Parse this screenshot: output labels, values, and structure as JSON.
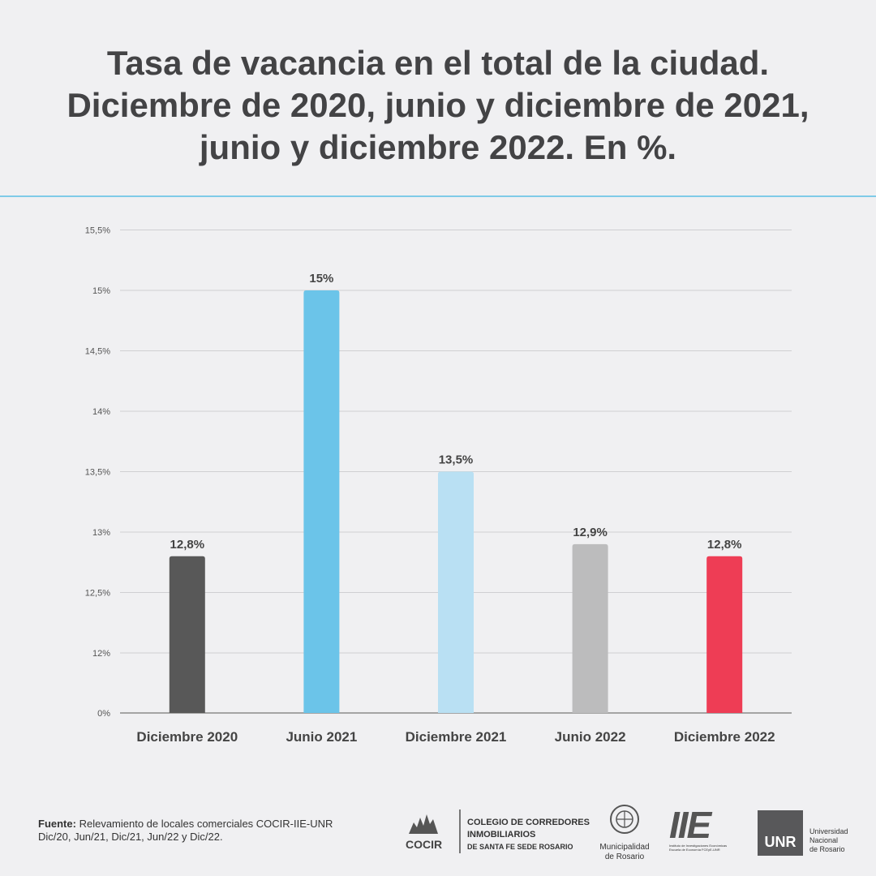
{
  "chart_data": {
    "type": "bar",
    "title": "Tasa de vacancia en el total de la ciudad. Diciembre de 2020, junio y diciembre de 2021, junio y diciembre 2022. En %.",
    "title_lines": [
      "Tasa de vacancia en el total de la ciudad.",
      "Diciembre de 2020, junio y diciembre de 2021,",
      "junio y diciembre 2022. En %."
    ],
    "categories": [
      "Diciembre 2020",
      "Junio 2021",
      "Diciembre 2021",
      "Junio 2022",
      "Diciembre 2022"
    ],
    "values": [
      12.8,
      15,
      13.5,
      12.9,
      12.8
    ],
    "value_labels": [
      "12,8%",
      "15%",
      "13,5%",
      "12,9%",
      "12,8%"
    ],
    "bar_colors": [
      "#585858",
      "#6bc4e9",
      "#b9e0f3",
      "#bcbcbd",
      "#ee3d55"
    ],
    "yticks": [
      0,
      12,
      12.5,
      13,
      13.5,
      14,
      14.5,
      15,
      15.5
    ],
    "ytick_labels": [
      "0%",
      "12%",
      "12,5%",
      "13%",
      "13,5%",
      "14%",
      "14,5%",
      "15%",
      "15,5%"
    ],
    "axis_break": "between 0% and 12%",
    "grid": true,
    "xlabel": "",
    "ylabel": ""
  },
  "footer": {
    "source_label": "Fuente:",
    "source_text": "Relevamiento de locales comerciales COCIR-IIE-UNR",
    "source_dates": "Dic/20, Jun/21, Dic/21, Jun/22 y Dic/22."
  },
  "logos": {
    "cocir_short": "COCIR",
    "cocir_line1": "COLEGIO DE CORREDORES",
    "cocir_line2": "INMOBILIARIOS",
    "cocir_line3": "DE SANTA FE SEDE ROSARIO",
    "muni_line1": "Municipalidad",
    "muni_line2": "de Rosario",
    "iie_short": "IIE",
    "iie_line1": "Instituto de Investigaciones Económicas",
    "iie_line2": "Escuela de Economía FCEyE-UNR",
    "unr_short": "UNR",
    "unr_line1": "Universidad",
    "unr_line2": "Nacional",
    "unr_line3": "de Rosario"
  },
  "colors": {
    "background": "#f0f0f2",
    "accent_rule": "#7fcbe8",
    "text": "#444444"
  }
}
